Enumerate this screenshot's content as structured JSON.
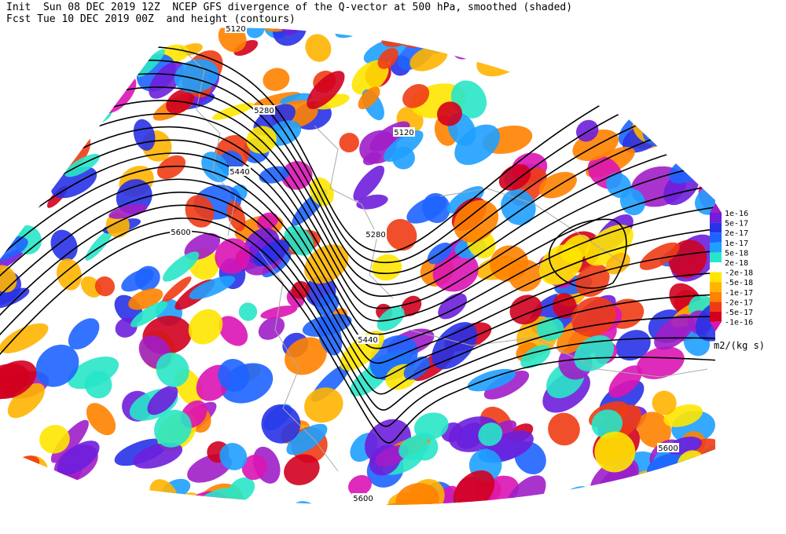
{
  "header": {
    "line1": "Init  Sun 08 DEC 2019 12Z  NCEP GFS divergence of the Q-vector at 500 hPa, smoothed (shaded)",
    "line2": "Fcst Tue 10 DEC 2019 00Z  and height (contours)"
  },
  "colorbar": {
    "labels": [
      "1e-16",
      "5e-17",
      "2e-17",
      "1e-17",
      "5e-18",
      "2e-18",
      "-2e-18",
      "-5e-18",
      "-1e-17",
      "-2e-17",
      "-5e-17",
      "-1e-16"
    ],
    "colors": [
      "#a01ec8",
      "#6e1edc",
      "#2832e6",
      "#1e64ff",
      "#1ea0ff",
      "#28e6c8",
      "#ffffff",
      "#ffe600",
      "#ffb400",
      "#ff8200",
      "#f03c14",
      "#d2001e",
      "#dc14b4"
    ],
    "units": "m2/(kg s)"
  },
  "contour_labels": [
    "5120",
    "5280",
    "5440",
    "5600",
    "5120",
    "5280",
    "5440",
    "5600",
    "5600"
  ]
}
